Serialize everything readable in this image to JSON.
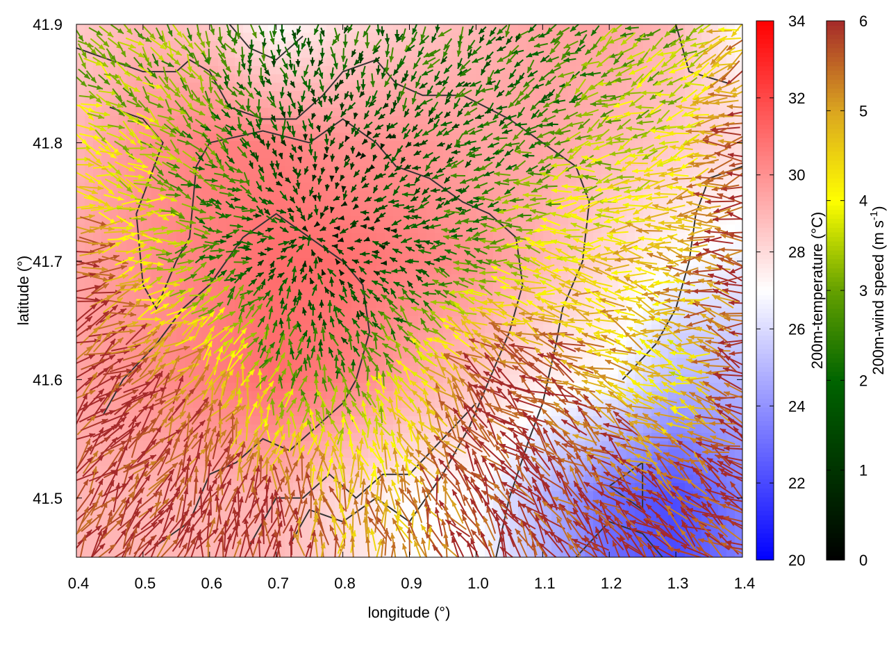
{
  "chart_data": {
    "type": "heatmap",
    "title": "",
    "xlabel": "longitude (°)",
    "ylabel": "latitude (°)",
    "xlim": [
      0.4,
      1.4
    ],
    "ylim": [
      41.45,
      41.9
    ],
    "xticks": [
      "0.4",
      "0.5",
      "0.6",
      "0.7",
      "0.8",
      "0.9",
      "1.0",
      "1.1",
      "1.2",
      "1.3",
      "1.4"
    ],
    "yticks": [
      "41.5",
      "41.6",
      "41.7",
      "41.8",
      "41.9"
    ],
    "grid_lon": [
      0.4,
      0.5,
      0.6,
      0.7,
      0.8,
      0.9,
      1.0,
      1.1,
      1.2,
      1.3,
      1.4
    ],
    "grid_lat": [
      41.9,
      41.8,
      41.7,
      41.6,
      41.5
    ],
    "temperature": {
      "label": "200m-temperature (°C)",
      "range": [
        20,
        34
      ],
      "ticks": [
        "20",
        "22",
        "24",
        "26",
        "28",
        "30",
        "32",
        "34"
      ],
      "colors": {
        "low": "#0000ff",
        "mid": "#ffffff",
        "high": "#ff0000"
      },
      "mid_value": 27,
      "values": [
        [
          28.5,
          29.0,
          28.5,
          27.0,
          28.0,
          28.5,
          29.0,
          29.5,
          29.5,
          29.0,
          27.0
        ],
        [
          29.0,
          30.0,
          30.5,
          30.5,
          30.0,
          30.0,
          29.5,
          29.5,
          29.0,
          28.5,
          28.0
        ],
        [
          29.5,
          30.0,
          30.5,
          31.0,
          31.0,
          30.5,
          30.0,
          29.0,
          28.0,
          27.0,
          26.5
        ],
        [
          29.5,
          30.0,
          30.5,
          31.0,
          30.5,
          29.5,
          28.5,
          27.5,
          27.0,
          25.0,
          25.0
        ],
        [
          29.0,
          29.0,
          29.0,
          29.0,
          28.0,
          27.0,
          27.0,
          25.0,
          23.0,
          22.0,
          23.5
        ]
      ]
    },
    "wind_speed": {
      "label_main": "200m-wind speed (m s",
      "label_sup": "-1",
      "label_end": ")",
      "range": [
        0,
        6
      ],
      "ticks": [
        "0",
        "1",
        "2",
        "3",
        "4",
        "5",
        "6"
      ],
      "palette": [
        "#000000",
        "#003300",
        "#006400",
        "#64a000",
        "#ffff00",
        "#daa520",
        "#a52a2a"
      ],
      "values": [
        [
          3.0,
          3.0,
          3.0,
          2.0,
          2.0,
          2.5,
          2.0,
          2.0,
          3.0,
          3.0,
          5.0
        ],
        [
          4.0,
          3.5,
          2.5,
          1.5,
          1.0,
          1.5,
          2.0,
          2.5,
          3.5,
          4.0,
          6.0
        ],
        [
          6.0,
          4.0,
          2.5,
          1.5,
          1.0,
          1.5,
          3.0,
          4.0,
          4.5,
          5.0,
          6.0
        ],
        [
          6.0,
          6.0,
          5.0,
          3.0,
          2.5,
          4.0,
          6.0,
          6.0,
          5.0,
          4.0,
          6.0
        ],
        [
          6.0,
          6.0,
          6.0,
          6.0,
          5.0,
          5.0,
          6.0,
          6.0,
          6.0,
          6.0,
          6.0
        ]
      ],
      "flow_convergence_center": [
        0.75,
        41.72
      ]
    }
  }
}
